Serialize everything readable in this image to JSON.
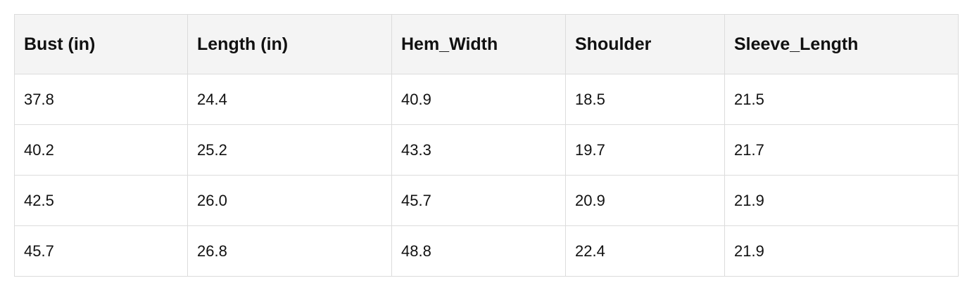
{
  "table": {
    "header": [
      "Bust (in)",
      "Length (in)",
      "Hem_Width",
      "Shoulder",
      "Sleeve_Length"
    ],
    "rows": [
      [
        "37.8",
        "24.4",
        "40.9",
        "18.5",
        "21.5"
      ],
      [
        "40.2",
        "25.2",
        "43.3",
        "19.7",
        "21.7"
      ],
      [
        "42.5",
        "26.0",
        "45.7",
        "20.9",
        "21.9"
      ],
      [
        "45.7",
        "26.8",
        "48.8",
        "22.4",
        "21.9"
      ]
    ]
  }
}
